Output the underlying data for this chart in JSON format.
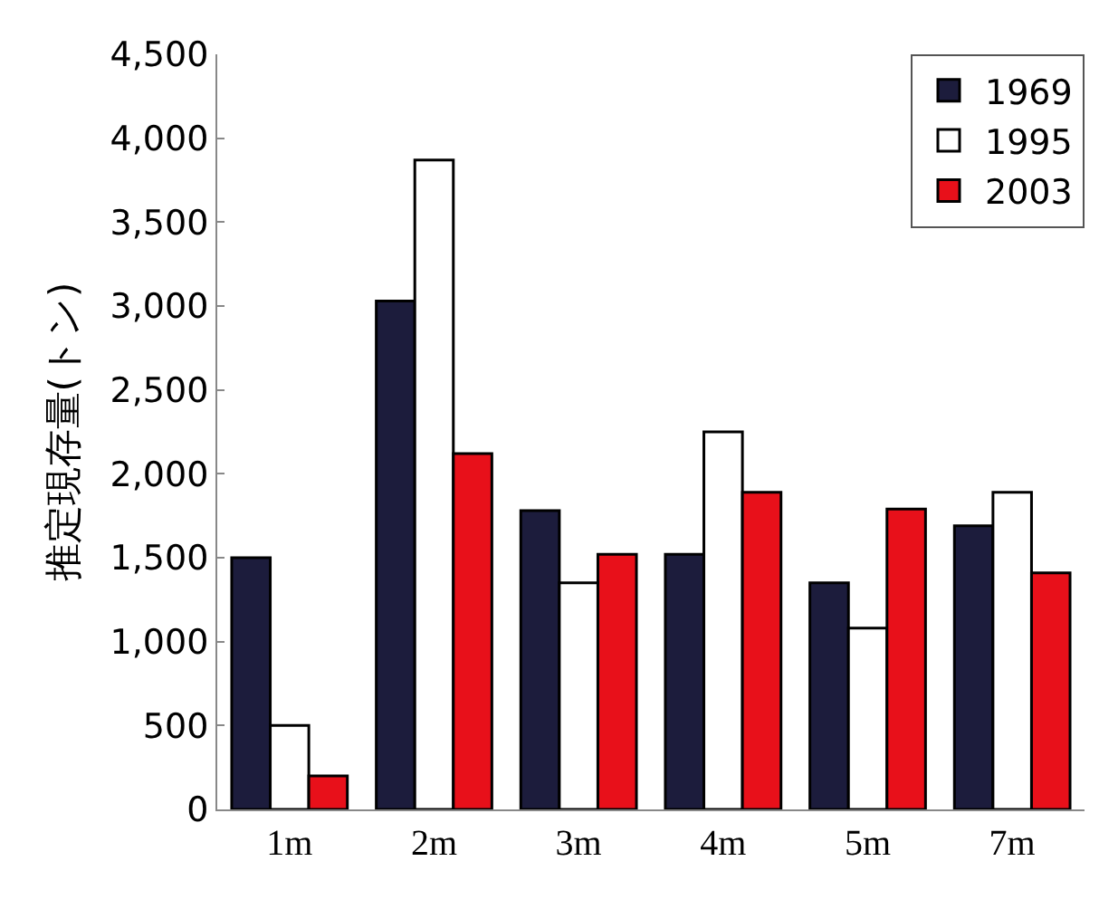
{
  "chart_data": {
    "type": "bar",
    "ylabel": "推定現存量(トン)",
    "categories": [
      "1m",
      "2m",
      "3m",
      "4m",
      "5m",
      "7m"
    ],
    "series": [
      {
        "name": "1969",
        "color": "#1c1c3c",
        "values": [
          1500,
          3030,
          1780,
          1520,
          1350,
          1690
        ]
      },
      {
        "name": "1995",
        "color": "#ffffff",
        "values": [
          500,
          3870,
          1350,
          2250,
          1080,
          1890
        ]
      },
      {
        "name": "2003",
        "color": "#e8101a",
        "values": [
          200,
          2120,
          1520,
          1890,
          1790,
          1410
        ]
      }
    ],
    "ylim": [
      0,
      4500
    ],
    "yticks": [
      {
        "value": 0,
        "label": "0"
      },
      {
        "value": 500,
        "label": "500"
      },
      {
        "value": 1000,
        "label": "1,000"
      },
      {
        "value": 1500,
        "label": "1,500"
      },
      {
        "value": 2000,
        "label": "2,000"
      },
      {
        "value": 2500,
        "label": "2,500"
      },
      {
        "value": 3000,
        "label": "3,000"
      },
      {
        "value": 3500,
        "label": "3,500"
      },
      {
        "value": 4000,
        "label": "4,000"
      },
      {
        "value": 4500,
        "label": "4,500"
      }
    ],
    "grid": false,
    "legend": "top right"
  }
}
